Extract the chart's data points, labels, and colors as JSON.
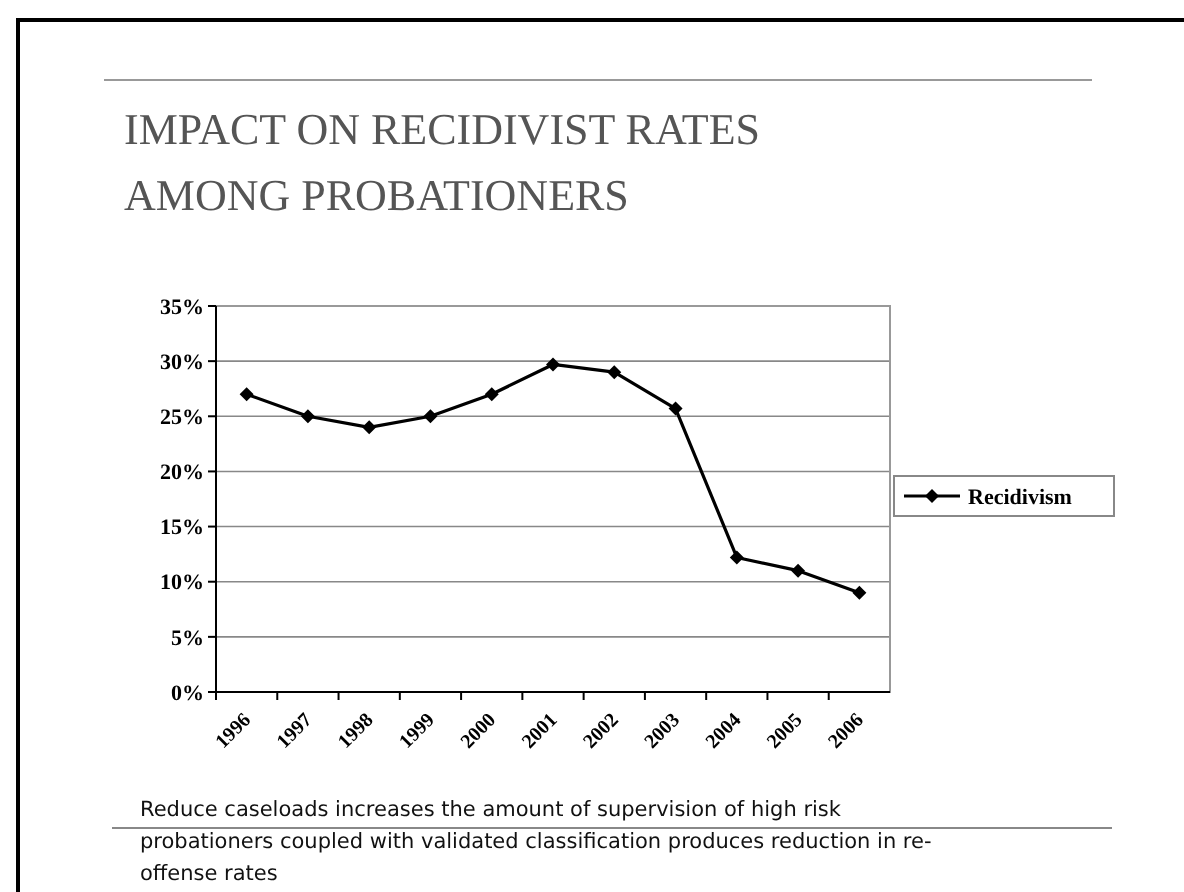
{
  "chart_data": {
    "type": "line",
    "title": "IMPACT ON RECIDIVIST RATES AMONG PROBATIONERS",
    "categories": [
      "1996",
      "1997",
      "1998",
      "1999",
      "2000",
      "2001",
      "2002",
      "2003",
      "2004",
      "2005",
      "2006"
    ],
    "series": [
      {
        "name": "Recidivism",
        "color": "#000000",
        "values": [
          27,
          25,
          24,
          25,
          27,
          29.7,
          29,
          25.7,
          12.2,
          11,
          9
        ]
      }
    ],
    "ylim": [
      0,
      35
    ],
    "yticks": [
      {
        "value": 0,
        "label": "0%"
      },
      {
        "value": 5,
        "label": "5%"
      },
      {
        "value": 10,
        "label": "10%"
      },
      {
        "value": 15,
        "label": "15%"
      },
      {
        "value": 20,
        "label": "20%"
      },
      {
        "value": 25,
        "label": "25%"
      },
      {
        "value": 30,
        "label": "30%"
      },
      {
        "value": 35,
        "label": "35%"
      }
    ],
    "grid": "y",
    "legend": "right",
    "marker": "diamond",
    "annotations": [
      "Reduce caseloads increases the amount of supervision of high risk probationers coupled with validated classification produces reduction in re-offense rates"
    ]
  }
}
